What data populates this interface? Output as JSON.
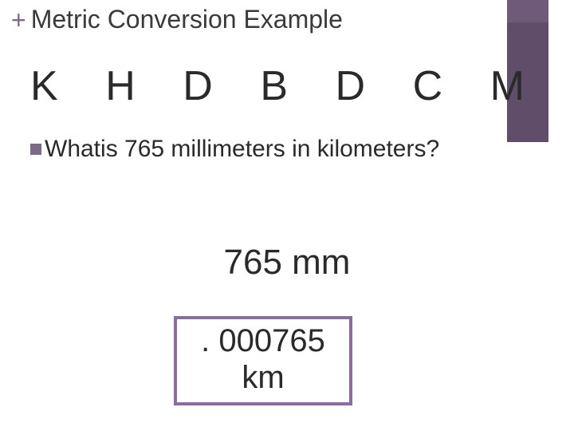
{
  "colors": {
    "accent_top": "#6f5a7a",
    "accent_side": "#604d69",
    "plus": "#7c6a8a",
    "bullet": "#7c6a8a",
    "box_border": "#8a6c9e",
    "text": "#2a2a2a",
    "background": "#ffffff"
  },
  "header": {
    "plus": "+",
    "title": "Metric Conversion Example"
  },
  "units": [
    "K",
    "H",
    "D",
    "B",
    "D",
    "C",
    "M"
  ],
  "question": {
    "prefix": "What",
    "rest": " is 765 millimeters in kilometers?"
  },
  "given": {
    "value": "765 mm"
  },
  "answer": {
    "line1": ". 000765",
    "line2": "km"
  },
  "typography": {
    "title_fontsize": 32,
    "units_fontsize": 52,
    "question_fontsize": 30,
    "value_fontsize": 44,
    "answer_fontsize": 40
  }
}
